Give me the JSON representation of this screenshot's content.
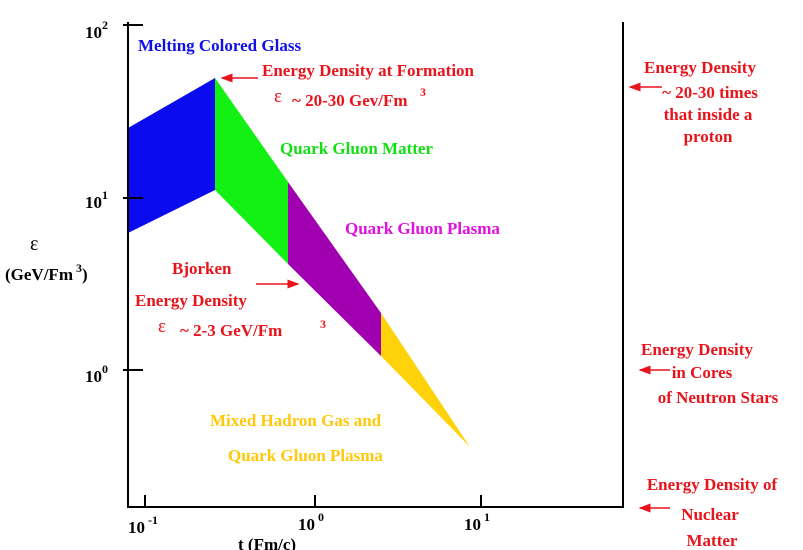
{
  "axes": {
    "y_symbol": "ε",
    "y_unit": "(GeV/Fm",
    "y_unit_sup": "3",
    "y_unit_close": ")",
    "x_label": "t (Fm/c)",
    "y_ticks": [
      {
        "base": "10",
        "exp": "2"
      },
      {
        "base": "10",
        "exp": "1"
      },
      {
        "base": "10",
        "exp": "0"
      }
    ],
    "x_ticks": [
      {
        "base": "10",
        "exp": "-1"
      },
      {
        "base": "10",
        "exp": "0"
      },
      {
        "base": "10",
        "exp": "1"
      }
    ]
  },
  "regions": {
    "glass": "Melting Colored Glass",
    "matter": "Quark Gluon Matter",
    "plasma": "Quark Gluon Plasma",
    "mixed_1": "Mixed Hadron Gas and",
    "mixed_2": "Quark Gluon Plasma"
  },
  "formation": {
    "title": "Energy Density at Formation",
    "symbol": "ε",
    "value": "~ 20-30 Gev/Fm",
    "sup": "3"
  },
  "bjorken": {
    "line1": "Bjorken",
    "line2": "Energy Density",
    "symbol": "ε",
    "value": "~ 2-3 GeV/Fm",
    "sup": "3"
  },
  "right_notes": {
    "proton": [
      "Energy Density",
      "~ 20-30 times",
      "that inside a",
      "proton"
    ],
    "neutron": [
      "Energy Density",
      "in Cores",
      "of Neutron Stars"
    ],
    "nuclear": [
      "Energy Density of",
      "Nuclear",
      "Matter"
    ]
  }
}
